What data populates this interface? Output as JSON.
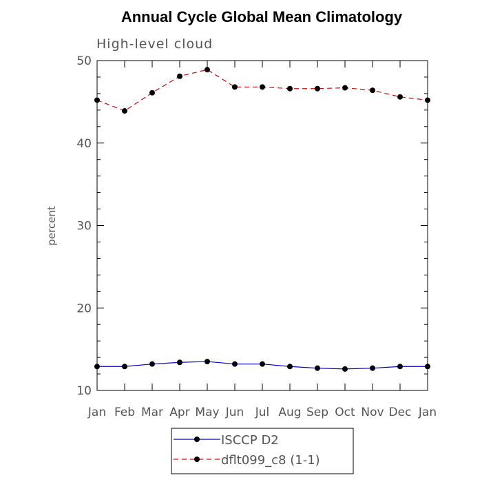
{
  "chart_data": {
    "type": "line",
    "title": "Annual Cycle Global Mean Climatology",
    "subtitle": "High-level cloud",
    "xlabel": "",
    "ylabel": "percent",
    "categories": [
      "Jan",
      "Feb",
      "Mar",
      "Apr",
      "May",
      "Jun",
      "Jul",
      "Aug",
      "Sep",
      "Oct",
      "Nov",
      "Dec",
      "Jan"
    ],
    "ylim": [
      10,
      50
    ],
    "yticks": [
      10,
      20,
      30,
      40,
      50
    ],
    "series": [
      {
        "name": "ISCCP D2",
        "color": "#0000cc",
        "dash": "solid",
        "values": [
          12.9,
          12.9,
          13.2,
          13.4,
          13.5,
          13.2,
          13.2,
          12.9,
          12.7,
          12.6,
          12.7,
          12.9,
          12.9
        ]
      },
      {
        "name": "dflt099_c8 (1-1)",
        "color": "#dd0000",
        "dash": "dashed",
        "values": [
          45.2,
          43.9,
          46.1,
          48.1,
          48.9,
          46.8,
          46.8,
          46.6,
          46.6,
          46.7,
          46.4,
          45.6,
          45.2
        ]
      }
    ],
    "legend_position": "bottom"
  }
}
